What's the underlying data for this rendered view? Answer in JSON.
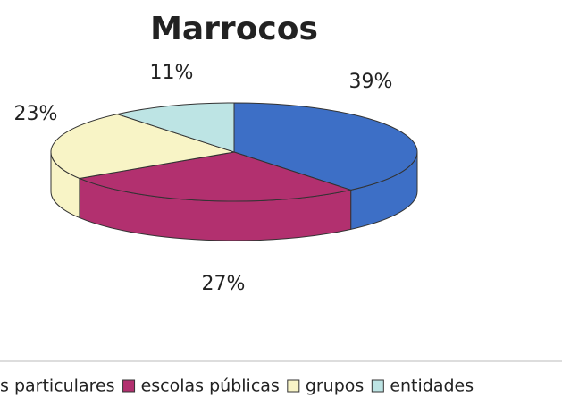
{
  "chart_data": {
    "type": "pie",
    "title": "Marrocos",
    "categories": [
      "s particulares",
      "escolas públicas",
      "grupos",
      "entidades"
    ],
    "values": [
      39,
      27,
      23,
      11
    ],
    "value_labels": [
      "39%",
      "27%",
      "23%",
      "11%"
    ],
    "colors": [
      "#3d6fc6",
      "#b2306f",
      "#f8f4c6",
      "#bde4e4"
    ],
    "legend": "bottom"
  }
}
